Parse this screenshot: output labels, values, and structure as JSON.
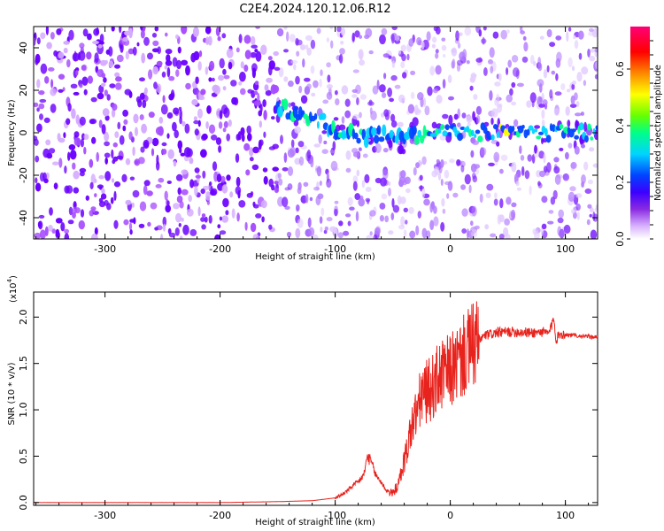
{
  "title": "C2E4.2024.120.12.06.R12",
  "colors": {
    "snr_line": "#e8231d",
    "spectrogram_base": "#6a00ff",
    "ridge": "#00e0ff"
  },
  "chart_data": [
    {
      "type": "heatmap",
      "title": "C2E4.2024.120.12.06.R12",
      "xlabel": "Height of straight line (km)",
      "ylabel": "Frequency (Hz)",
      "xlim": [
        -362,
        128
      ],
      "ylim": [
        -50,
        50
      ],
      "xticks": [
        -300,
        -200,
        -100,
        0,
        100
      ],
      "yticks": [
        -40,
        -20,
        0,
        20,
        40
      ],
      "xtick_labels": [
        "-300",
        "-200",
        "-100",
        "0",
        "100"
      ],
      "ytick_labels": [
        "-40",
        "-20",
        "0",
        "20",
        "40"
      ],
      "colorbar": {
        "label": "Normalized spectral amplitude",
        "range": [
          0,
          0.75
        ],
        "ticks": [
          0.0,
          0.2,
          0.4,
          0.6
        ],
        "tick_labels": [
          "0.0",
          "0.2",
          "0.4",
          "0.6"
        ],
        "colormap": "rainbow (white-violet-blue-cyan-green-yellow-red-magenta)"
      },
      "features": {
        "dense_noise_until_x": -150,
        "ridge_frequency": 0,
        "ridge_x_range": [
          -150,
          128
        ],
        "ridge_points": [
          [
            -150,
            12
          ],
          [
            -120,
            8
          ],
          [
            -100,
            2
          ],
          [
            -80,
            -2
          ],
          [
            -60,
            -1
          ],
          [
            -40,
            -3
          ],
          [
            -20,
            0
          ],
          [
            0,
            0
          ],
          [
            50,
            0
          ],
          [
            100,
            0
          ],
          [
            128,
            0
          ]
        ],
        "peak_amplitude_near_x": 45
      }
    },
    {
      "type": "line",
      "xlabel": "Height of straight line (km)",
      "ylabel": "SNR (10 * v/v)",
      "y_multiplier": "(x10",
      "y_multiplier_exp": "4",
      "y_multiplier_close": ")",
      "xlim": [
        -362,
        128
      ],
      "ylim": [
        -0.03,
        2.27
      ],
      "xticks": [
        -300,
        -200,
        -100,
        0,
        100
      ],
      "yticks": [
        0.0,
        0.5,
        1.0,
        1.5,
        2.0
      ],
      "xtick_labels": [
        "-300",
        "-200",
        "-100",
        "0",
        "100"
      ],
      "ytick_labels": [
        "0.0",
        "0.5",
        "1.0",
        "1.5",
        "2.0"
      ],
      "series": [
        {
          "color": "#e8231d",
          "x": [
            -362,
            -300,
            -200,
            -150,
            -120,
            -100,
            -95,
            -90,
            -85,
            -80,
            -75,
            -72,
            -68,
            -65,
            -60,
            -55,
            -50,
            -45,
            -42,
            -38,
            -35,
            -30,
            -25,
            -20,
            -15,
            -10,
            -5,
            0,
            5,
            10,
            15,
            20,
            25,
            30,
            40,
            50,
            60,
            70,
            80,
            85,
            88,
            90,
            92,
            95,
            100,
            110,
            120,
            128
          ],
          "y": [
            0.0,
            0.0,
            0.0,
            0.01,
            0.02,
            0.05,
            0.08,
            0.12,
            0.18,
            0.22,
            0.3,
            0.5,
            0.42,
            0.3,
            0.22,
            0.12,
            0.1,
            0.2,
            0.35,
            0.55,
            0.75,
            0.95,
            1.15,
            1.2,
            1.25,
            1.35,
            1.38,
            1.42,
            1.48,
            1.55,
            1.62,
            1.7,
            1.75,
            1.8,
            1.83,
            1.84,
            1.84,
            1.83,
            1.84,
            1.82,
            1.9,
            2.0,
            1.75,
            1.82,
            1.81,
            1.8,
            1.79,
            1.78
          ]
        }
      ]
    }
  ]
}
